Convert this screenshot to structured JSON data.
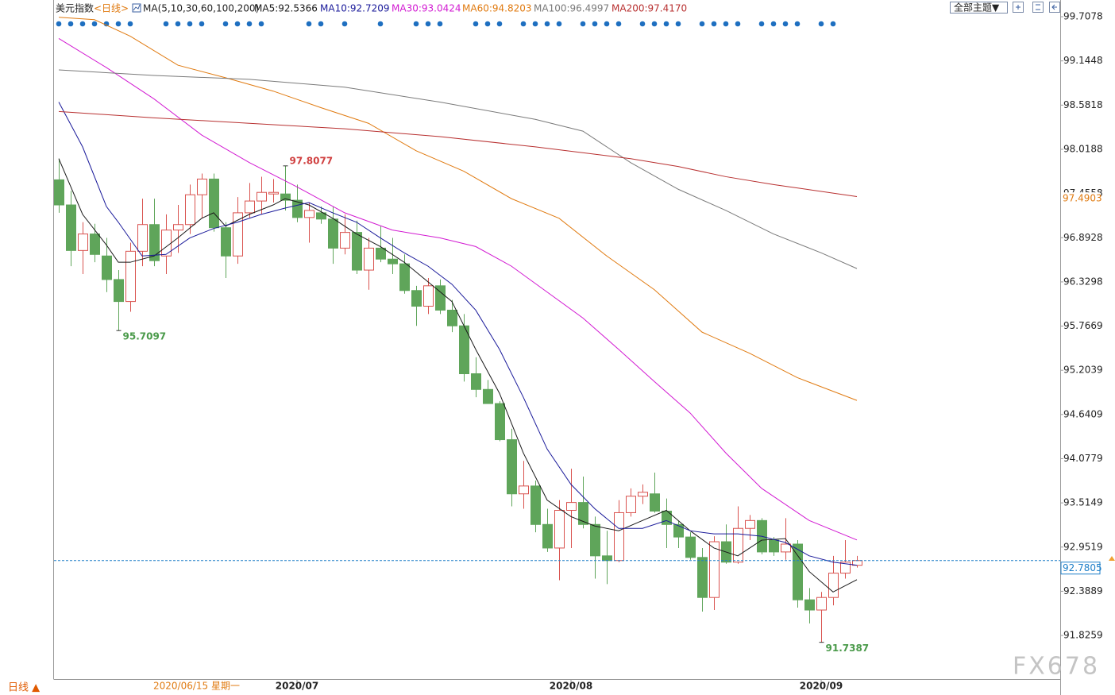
{
  "chart_data": {
    "type": "candlestick",
    "title": "美元指数",
    "period": "<日线>",
    "ma_label": "MA(5,10,30,60,100,200)",
    "toolbar_button": "全部主题▼",
    "period_button": "日线 ▲",
    "cursor_date": "2020/06/15 星期一",
    "watermark": "FX678",
    "up_color": "#d9534f",
    "down_color": "#5fa55a",
    "grid": false,
    "ylim": [
      91.27,
      99.87
    ],
    "yticks": [
      99.7078,
      99.1448,
      98.5818,
      98.0188,
      97.4558,
      96.8928,
      96.3298,
      95.7669,
      95.2039,
      94.6409,
      94.0779,
      93.5149,
      92.9519,
      92.3889,
      91.8259
    ],
    "categories": [
      null,
      null,
      null,
      null,
      null,
      null,
      null,
      null,
      null,
      null,
      null,
      null,
      null,
      null,
      null,
      null,
      null,
      null,
      null,
      null,
      "2020/07",
      null,
      null,
      null,
      null,
      null,
      null,
      null,
      null,
      null,
      null,
      null,
      null,
      null,
      null,
      null,
      null,
      null,
      null,
      null,
      null,
      null,
      null,
      "2020/08",
      null,
      null,
      null,
      null,
      null,
      null,
      null,
      null,
      null,
      null,
      null,
      null,
      null,
      null,
      null,
      null,
      null,
      null,
      null,
      null,
      "2020/09",
      null,
      null,
      null
    ],
    "open": [
      97.63,
      97.31,
      96.73,
      96.94,
      96.66,
      96.36,
      96.08,
      96.72,
      97.06,
      96.66,
      96.99,
      97.06,
      97.44,
      97.64,
      97.02,
      96.66,
      97.21,
      97.36,
      97.45,
      97.45,
      97.37,
      97.15,
      97.21,
      97.13,
      96.76,
      96.96,
      96.48,
      96.76,
      96.62,
      96.56,
      96.22,
      96.02,
      96.28,
      95.97,
      95.77,
      95.16,
      94.96,
      94.78,
      94.32,
      93.63,
      93.73,
      93.24,
      92.94,
      93.42,
      93.52,
      93.24,
      92.84,
      92.78,
      93.39,
      93.6,
      93.63,
      93.41,
      93.24,
      93.08,
      92.82,
      92.31,
      93.02,
      92.76,
      93.19,
      93.29,
      93.04,
      92.89,
      92.99,
      92.28,
      92.15,
      92.31,
      92.62,
      92.72
    ],
    "close": [
      97.31,
      96.73,
      96.94,
      96.68,
      96.36,
      96.08,
      96.72,
      97.06,
      96.6,
      96.99,
      97.06,
      97.44,
      97.64,
      97.02,
      96.66,
      97.21,
      97.36,
      97.47,
      97.47,
      97.37,
      97.15,
      97.24,
      97.13,
      96.76,
      96.96,
      96.48,
      96.76,
      96.62,
      96.56,
      96.22,
      96.02,
      96.28,
      95.97,
      95.77,
      95.16,
      94.96,
      94.78,
      94.32,
      93.63,
      93.73,
      93.24,
      92.94,
      93.42,
      93.52,
      93.24,
      92.84,
      92.78,
      93.39,
      93.6,
      93.65,
      93.41,
      93.24,
      93.08,
      92.82,
      92.31,
      93.02,
      92.76,
      93.19,
      93.29,
      92.89,
      92.89,
      92.99,
      92.28,
      92.15,
      92.31,
      92.62,
      92.76,
      92.78
    ],
    "high": [
      97.9,
      97.49,
      97.09,
      97.07,
      96.89,
      96.48,
      96.83,
      97.39,
      97.39,
      97.19,
      97.31,
      97.57,
      97.71,
      97.71,
      97.09,
      97.41,
      97.59,
      97.67,
      97.64,
      97.8077,
      97.57,
      97.34,
      97.29,
      97.29,
      97.19,
      97.11,
      96.89,
      97.04,
      96.89,
      96.68,
      96.28,
      96.38,
      96.36,
      96.1,
      95.92,
      95.37,
      95.08,
      94.81,
      94.46,
      94.05,
      93.8,
      93.44,
      93.55,
      93.95,
      93.85,
      93.34,
      93.16,
      93.55,
      93.7,
      93.75,
      93.9,
      93.57,
      93.29,
      93.14,
      92.94,
      93.09,
      93.24,
      93.47,
      93.36,
      93.32,
      93.08,
      93.32,
      93.04,
      92.43,
      92.38,
      92.84,
      93.04,
      92.84
    ],
    "low": [
      97.21,
      96.53,
      96.43,
      96.58,
      96.2,
      95.7097,
      95.95,
      96.53,
      96.53,
      96.43,
      96.7,
      96.94,
      97.14,
      96.97,
      96.38,
      96.56,
      97.14,
      97.19,
      97.34,
      97.24,
      97.09,
      96.83,
      97.07,
      96.56,
      96.68,
      96.43,
      96.23,
      96.58,
      96.43,
      96.18,
      95.77,
      95.92,
      95.92,
      95.69,
      95.06,
      94.86,
      94.78,
      94.3,
      93.47,
      93.44,
      93.14,
      92.89,
      92.53,
      92.94,
      93.19,
      92.55,
      92.48,
      92.76,
      93.34,
      93.5,
      93.39,
      92.94,
      92.94,
      92.79,
      92.13,
      92.15,
      92.74,
      92.74,
      93.04,
      92.86,
      92.84,
      92.79,
      92.18,
      91.98,
      91.7387,
      92.21,
      92.55,
      92.69
    ],
    "extreme_marks": {
      "high": [
        19
      ],
      "low": [
        5,
        64
      ]
    },
    "series": [
      {
        "name": "MA5:92.5366",
        "color": "#1a1a1a",
        "x": [
          0,
          2,
          4,
          5,
          6,
          8,
          10,
          12,
          13,
          14,
          16,
          18,
          19,
          21,
          23,
          25,
          27,
          29,
          31,
          33,
          35,
          37,
          39,
          41,
          43,
          45,
          47,
          49,
          51,
          53,
          55,
          57,
          59,
          61,
          63,
          65,
          67
        ],
        "values": [
          97.9,
          97.19,
          96.8,
          96.58,
          96.58,
          96.66,
          96.89,
          97.14,
          97.21,
          97.04,
          97.19,
          97.31,
          97.39,
          97.31,
          97.14,
          96.94,
          96.78,
          96.58,
          96.33,
          96.08,
          95.47,
          94.91,
          94.15,
          93.55,
          93.34,
          93.22,
          93.16,
          93.29,
          93.42,
          93.16,
          92.94,
          92.84,
          93.04,
          93.06,
          92.64,
          92.38,
          92.5366
        ]
      },
      {
        "name": "MA10:92.7209",
        "color": "#1a1a9a",
        "x": [
          0,
          2,
          4,
          5,
          7,
          9,
          11,
          13,
          15,
          17,
          19,
          21,
          23,
          25,
          27,
          29,
          31,
          33,
          35,
          37,
          39,
          41,
          43,
          45,
          47,
          49,
          51,
          53,
          55,
          57,
          59,
          61,
          63,
          65,
          67
        ],
        "values": [
          98.62,
          98.05,
          97.29,
          97.09,
          96.66,
          96.68,
          96.89,
          97.01,
          97.09,
          97.19,
          97.27,
          97.34,
          97.21,
          97.09,
          96.89,
          96.7,
          96.53,
          96.3,
          95.97,
          95.47,
          94.86,
          94.2,
          93.75,
          93.44,
          93.19,
          93.19,
          93.29,
          93.16,
          93.12,
          93.12,
          93.09,
          93.01,
          92.84,
          92.76,
          92.7209
        ]
      },
      {
        "name": "MA30:93.0424",
        "color": "#d21ad2",
        "x": [
          0,
          4,
          8,
          12,
          16,
          20,
          24,
          28,
          32,
          35,
          38,
          41,
          44,
          47,
          50,
          53,
          56,
          59,
          63,
          67
        ],
        "values": [
          99.43,
          99.06,
          98.66,
          98.2,
          97.85,
          97.54,
          97.21,
          96.99,
          96.89,
          96.78,
          96.53,
          96.2,
          95.87,
          95.47,
          95.06,
          94.66,
          94.15,
          93.7,
          93.29,
          93.0424
        ]
      },
      {
        "name": "MA60:94.8203",
        "color": "#e07a10",
        "x": [
          0,
          3,
          6,
          10,
          14,
          18,
          22,
          26,
          30,
          34,
          38,
          42,
          46,
          50,
          54,
          58,
          62,
          67
        ],
        "values": [
          99.7,
          99.67,
          99.46,
          99.09,
          98.93,
          98.76,
          98.55,
          98.35,
          98.0,
          97.74,
          97.39,
          97.14,
          96.66,
          96.23,
          95.69,
          95.42,
          95.11,
          94.8203
        ]
      },
      {
        "name": "MA100:96.4997",
        "color": "#7a7a7a",
        "x": [
          0,
          8,
          16,
          24,
          32,
          40,
          44,
          48,
          52,
          56,
          60,
          64,
          67
        ],
        "values": [
          99.03,
          98.96,
          98.91,
          98.81,
          98.62,
          98.4,
          98.25,
          97.85,
          97.51,
          97.24,
          96.94,
          96.7,
          96.4997
        ]
      },
      {
        "name": "MA200:97.4170",
        "color": "#b83030",
        "x": [
          0,
          8,
          16,
          24,
          32,
          40,
          48,
          52,
          56,
          60,
          67
        ],
        "values": [
          98.5,
          98.42,
          98.35,
          98.28,
          98.18,
          98.05,
          97.9,
          97.8,
          97.67,
          97.57,
          97.417
        ]
      }
    ],
    "price_markers": [
      {
        "value": 97.4903,
        "color": "#e07a10",
        "line": false
      },
      {
        "value": 92.7805,
        "color": "#1e7fc8",
        "line": true
      }
    ],
    "event_markers": [
      0,
      1,
      2,
      3,
      4,
      5,
      6,
      9,
      10,
      11,
      12,
      14,
      15,
      16,
      17,
      21,
      22,
      24,
      27,
      30,
      31,
      32,
      35,
      36,
      37,
      39,
      40,
      41,
      42,
      44,
      45,
      46,
      47,
      49,
      50,
      51,
      52,
      54,
      55,
      56,
      57,
      59,
      60,
      61,
      62,
      64,
      65
    ]
  }
}
